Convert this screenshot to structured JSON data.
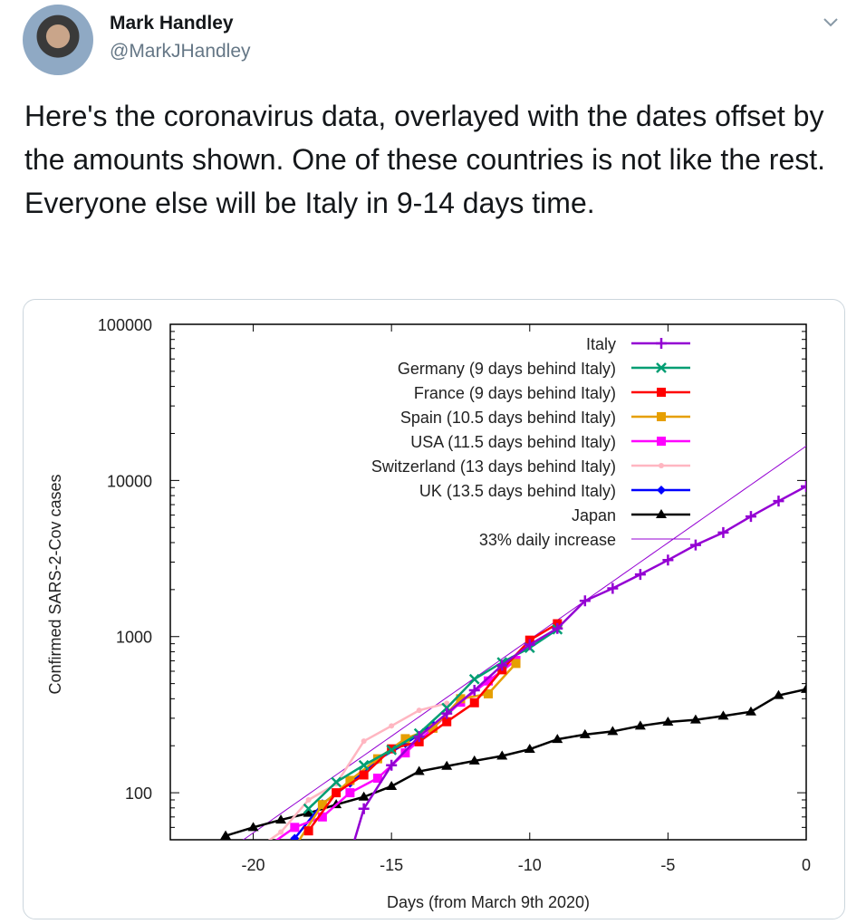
{
  "tweet": {
    "name": "Mark Handley",
    "handle": "@MarkJHandley",
    "text": "Here's the coronavirus data, overlayed with the dates offset by the amounts shown.  One of these countries is not like the rest.  Everyone else will be Italy in 9-14 days time.",
    "menu_icon": "chevron-down-icon"
  },
  "chart_data": {
    "type": "line",
    "xlabel": "Days (from March 9th 2020)",
    "ylabel": "Confirmed SARS-2-Cov cases",
    "xlim": [
      -23,
      0
    ],
    "ylim": [
      50,
      100000
    ],
    "yscale": "log",
    "xticks": [
      -20,
      -15,
      -10,
      -5,
      0
    ],
    "yticks": [
      100,
      1000,
      10000,
      100000
    ],
    "grid": false,
    "legend_placement": "top-right",
    "series": [
      {
        "name": "Italy",
        "color": "#9400d3",
        "marker": "plus",
        "x": [
          -17,
          -16,
          -15,
          -14,
          -13,
          -12,
          -11,
          -10,
          -9,
          -8,
          -7,
          -6,
          -5,
          -4,
          -3,
          -2,
          -1,
          0
        ],
        "values": [
          20,
          79,
          150,
          229,
          322,
          453,
          655,
          888,
          1128,
          1694,
          2036,
          2502,
          3089,
          3858,
          4636,
          5883,
          7375,
          9172
        ]
      },
      {
        "name": "Germany (9 days behind Italy)",
        "color": "#009e73",
        "marker": "cross",
        "x": [
          -18,
          -17,
          -16,
          -15,
          -14,
          -13,
          -12,
          -11,
          -10,
          -9
        ],
        "values": [
          79,
          117,
          150,
          188,
          240,
          349,
          534,
          684,
          847,
          1112
        ]
      },
      {
        "name": "France (9 days behind Italy)",
        "color": "#ff0000",
        "marker": "square",
        "x": [
          -18,
          -17,
          -16,
          -15,
          -14,
          -13,
          -12,
          -11,
          -10,
          -9
        ],
        "values": [
          57,
          100,
          130,
          191,
          212,
          285,
          377,
          613,
          949,
          1209
        ]
      },
      {
        "name": "Spain (10.5 days behind Italy)",
        "color": "#e69f00",
        "marker": "square",
        "x": [
          -18.5,
          -17.5,
          -16.5,
          -15.5,
          -14.5,
          -13.5,
          -12.5,
          -11.5,
          -10.5
        ],
        "values": [
          45,
          84,
          120,
          165,
          222,
          259,
          400,
          430,
          673
        ]
      },
      {
        "name": "USA (11.5 days behind Italy)",
        "color": "#ff00ff",
        "marker": "square",
        "x": [
          -19.5,
          -18.5,
          -17.5,
          -16.5,
          -15.5,
          -14.5,
          -13.5,
          -12.5,
          -11.5,
          -10.5
        ],
        "values": [
          45,
          60,
          70,
          100,
          124,
          180,
          260,
          380,
          520,
          704
        ]
      },
      {
        "name": "Switzerland (13 days behind Italy)",
        "color": "#ffb6c1",
        "marker": "dot",
        "x": [
          -20,
          -19,
          -18,
          -17,
          -16,
          -15,
          -14,
          -13
        ],
        "values": [
          42,
          56,
          90,
          114,
          214,
          268,
          337,
          374
        ]
      },
      {
        "name": "UK (13.5 days behind Italy)",
        "color": "#0000ff",
        "marker": "diamond",
        "x": [
          -18.5,
          -17.5,
          -16.5,
          -15.5,
          -14.5,
          -13.5
        ],
        "values": [
          51,
          85,
          115,
          163,
          206,
          273
        ]
      },
      {
        "name": "Japan",
        "color": "#000000",
        "marker": "triangle",
        "x": [
          -21,
          -20,
          -19,
          -18,
          -17,
          -16,
          -15,
          -14,
          -13,
          -12,
          -11,
          -10,
          -9,
          -8,
          -7,
          -6,
          -5,
          -4,
          -3,
          -2,
          -1,
          0
        ],
        "values": [
          53,
          60,
          67,
          74,
          84,
          94,
          110,
          137,
          148,
          160,
          172,
          190,
          220,
          236,
          247,
          268,
          284,
          293,
          310,
          330,
          420,
          460
        ]
      },
      {
        "name": "33% daily increase",
        "color": "#9400d3",
        "marker": "none",
        "function": "16600*1.33^x"
      }
    ]
  }
}
